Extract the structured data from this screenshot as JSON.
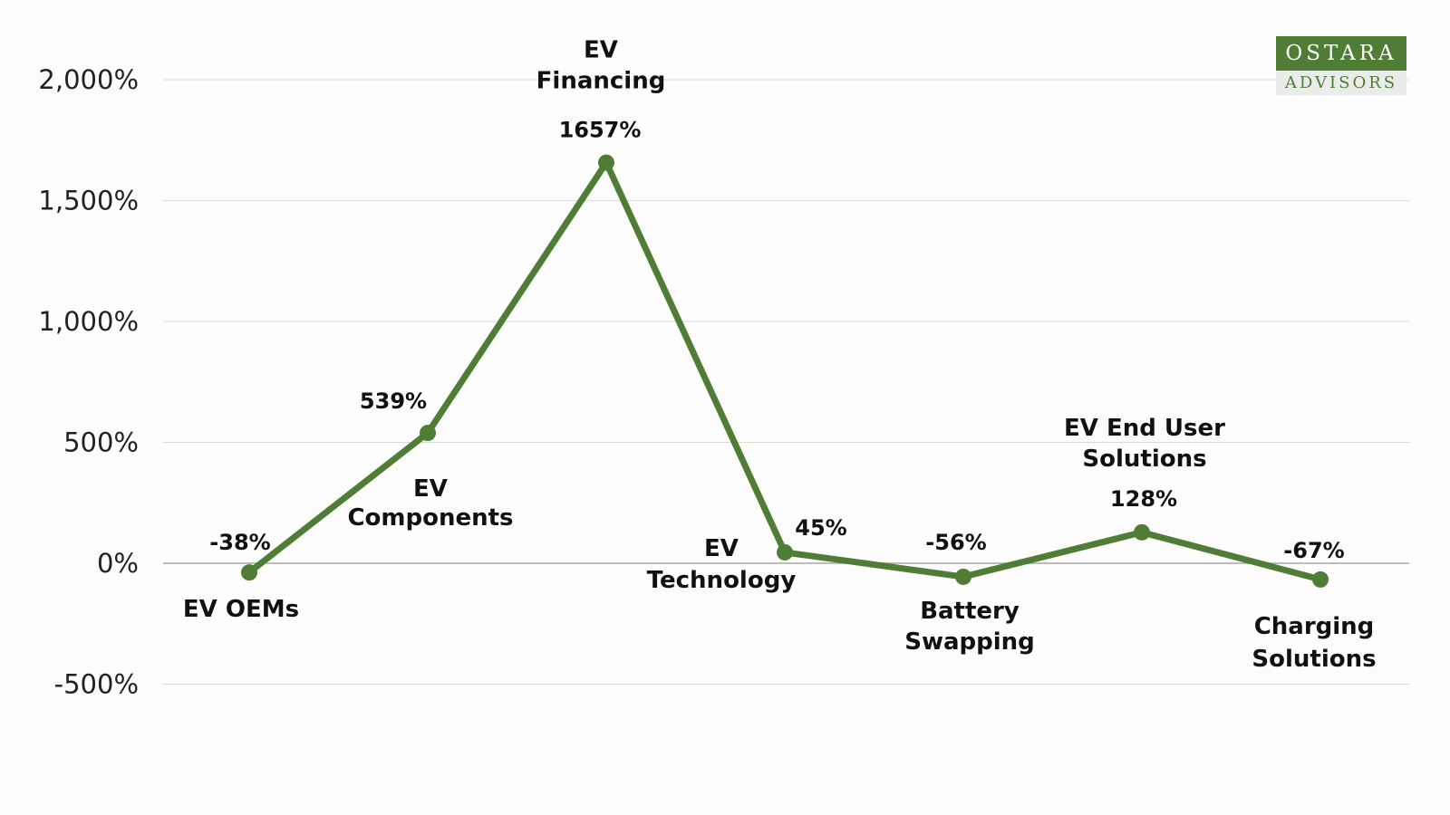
{
  "logo": {
    "top_text": "OSTARA",
    "bottom_text": "ADVISORS"
  },
  "chart_data": {
    "type": "line",
    "title": "",
    "xlabel": "",
    "ylabel": "",
    "ylim": [
      -500,
      2000
    ],
    "yticks": [
      -500,
      0,
      500,
      1000,
      1500,
      2000
    ],
    "ytick_labels": [
      "-500%",
      "0%",
      "500%",
      "1,000%",
      "1,500%",
      "2,000%"
    ],
    "grid": true,
    "categories": [
      [
        "EV OEMs"
      ],
      [
        "EV",
        "Components"
      ],
      [
        "EV",
        "Financing"
      ],
      [
        "EV",
        "Technology"
      ],
      [
        "Battery",
        "Swapping"
      ],
      [
        "EV End User",
        "Solutions"
      ],
      [
        "Charging",
        "Solutions"
      ]
    ],
    "values": [
      -38,
      539,
      1657,
      45,
      -56,
      128,
      -67
    ],
    "value_labels": [
      "-38%",
      "539%",
      "1657%",
      "45%",
      "-56%",
      "128%",
      "-67%"
    ],
    "line_color": "#4f7d35",
    "grid_color": "#d9d9d9",
    "zero_line_color": "#a6a6a6"
  }
}
